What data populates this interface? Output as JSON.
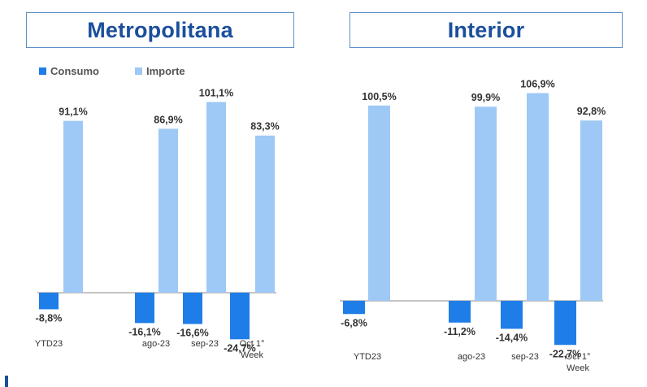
{
  "colors": {
    "consumo": "#1f7de8",
    "importe": "#9ec8f5",
    "title": "#1b4f9c",
    "axis": "#888888"
  },
  "legend": {
    "consumo": "Consumo",
    "importe": "Importe"
  },
  "chart_data": [
    {
      "type": "bar",
      "title": "Metropolitana",
      "categories": [
        "YTD23",
        "ago-23",
        "sep-23",
        "Oct 1° Week"
      ],
      "series": [
        {
          "name": "Consumo",
          "values": [
            -8.8,
            -16.1,
            -16.6,
            -24.7
          ],
          "labels": [
            "-8,8%",
            "-16,1%",
            "-16,6%",
            "-24,7%"
          ]
        },
        {
          "name": "Importe",
          "values": [
            91.1,
            86.9,
            101.1,
            83.3
          ],
          "labels": [
            "91,1%",
            "86,9%",
            "101,1%",
            "83,3%"
          ]
        }
      ],
      "xlabel": "",
      "ylabel": "",
      "ylim": [
        -25,
        110
      ]
    },
    {
      "type": "bar",
      "title": "Interior",
      "categories": [
        "YTD23",
        "ago-23",
        "sep-23",
        "Oct 1° Week"
      ],
      "series": [
        {
          "name": "Consumo",
          "values": [
            -6.8,
            -11.2,
            -14.4,
            -22.7
          ],
          "labels": [
            "-6,8%",
            "-11,2%",
            "-14,4%",
            "-22,7%"
          ]
        },
        {
          "name": "Importe",
          "values": [
            100.5,
            99.9,
            106.9,
            92.8
          ],
          "labels": [
            "100,5%",
            "99,9%",
            "106,9%",
            "92,8%"
          ]
        }
      ],
      "xlabel": "",
      "ylabel": "",
      "ylim": [
        -25,
        110
      ]
    }
  ]
}
